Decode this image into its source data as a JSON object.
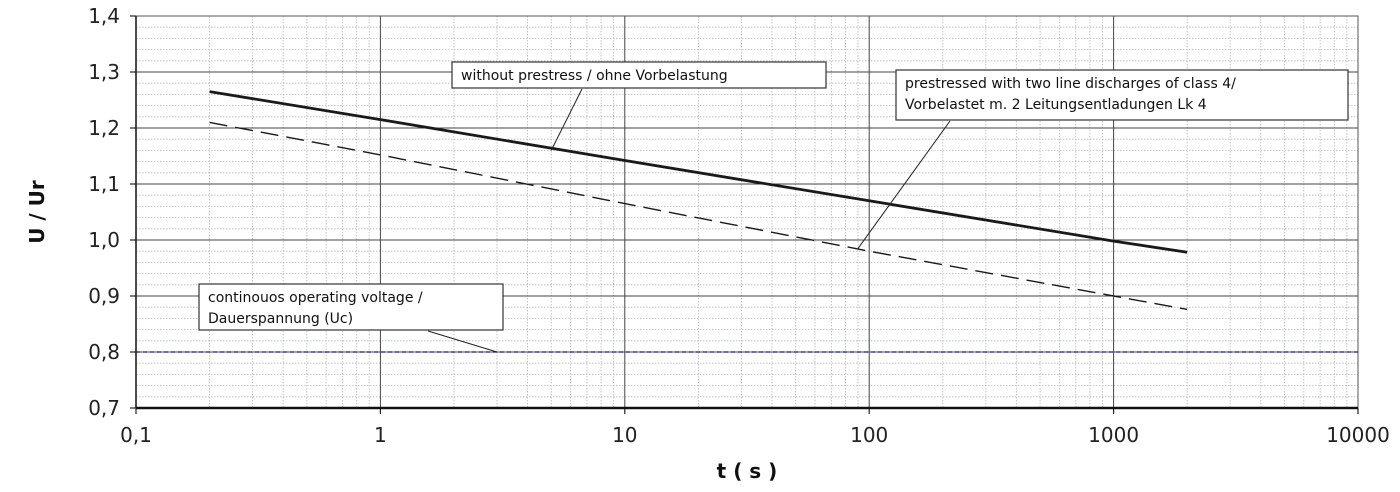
{
  "chart_data": {
    "type": "line",
    "title": "",
    "xlabel": "t ( s )",
    "ylabel": "U / Ur",
    "x_scale": "log",
    "xlim": [
      0.1,
      10000
    ],
    "ylim": [
      0.7,
      1.4
    ],
    "x_ticks": [
      "0,1",
      "1",
      "10",
      "100",
      "1000",
      "10000"
    ],
    "y_ticks": [
      "0,7",
      "0,8",
      "0,9",
      "1,0",
      "1,1",
      "1,2",
      "1,3",
      "1,4"
    ],
    "grid": true,
    "series": [
      {
        "name": "without prestress / ohne Vorbelastung",
        "style": "solid",
        "color": "#1a1a1a",
        "x": [
          0.2,
          1,
          10,
          100,
          1000,
          2000
        ],
        "y": [
          1.265,
          1.215,
          1.142,
          1.07,
          0.998,
          0.978
        ]
      },
      {
        "name": "prestressed with two line discharges of class 4/ Vorbelastet m. 2 Leitungsentladungen Lk 4",
        "style": "dashed",
        "color": "#1a1a1a",
        "x": [
          0.2,
          1,
          10,
          100,
          1000,
          2000
        ],
        "y": [
          1.21,
          1.152,
          1.065,
          0.98,
          0.9,
          0.876
        ]
      },
      {
        "name": "continouos operating voltage / Dauerspannung (Uc)",
        "style": "dashed",
        "color": "#1a1a6e",
        "x": [
          0.1,
          10000
        ],
        "y": [
          0.8,
          0.8
        ]
      }
    ],
    "annotations": [
      {
        "id": "ann-without",
        "lines": [
          "without prestress / ohne Vorbelastung"
        ],
        "target": {
          "x": 5,
          "y": 1.16
        }
      },
      {
        "id": "ann-prestressed",
        "lines": [
          "prestressed with two line discharges of class 4/",
          "Vorbelastet m. 2 Leitungsentladungen Lk 4"
        ],
        "target": {
          "x": 90,
          "y": 0.985
        }
      },
      {
        "id": "ann-continuous",
        "lines": [
          "continouos operating voltage /",
          "Dauerspannung  (Uc)"
        ],
        "target": {
          "x": 3,
          "y": 0.8
        }
      }
    ]
  }
}
